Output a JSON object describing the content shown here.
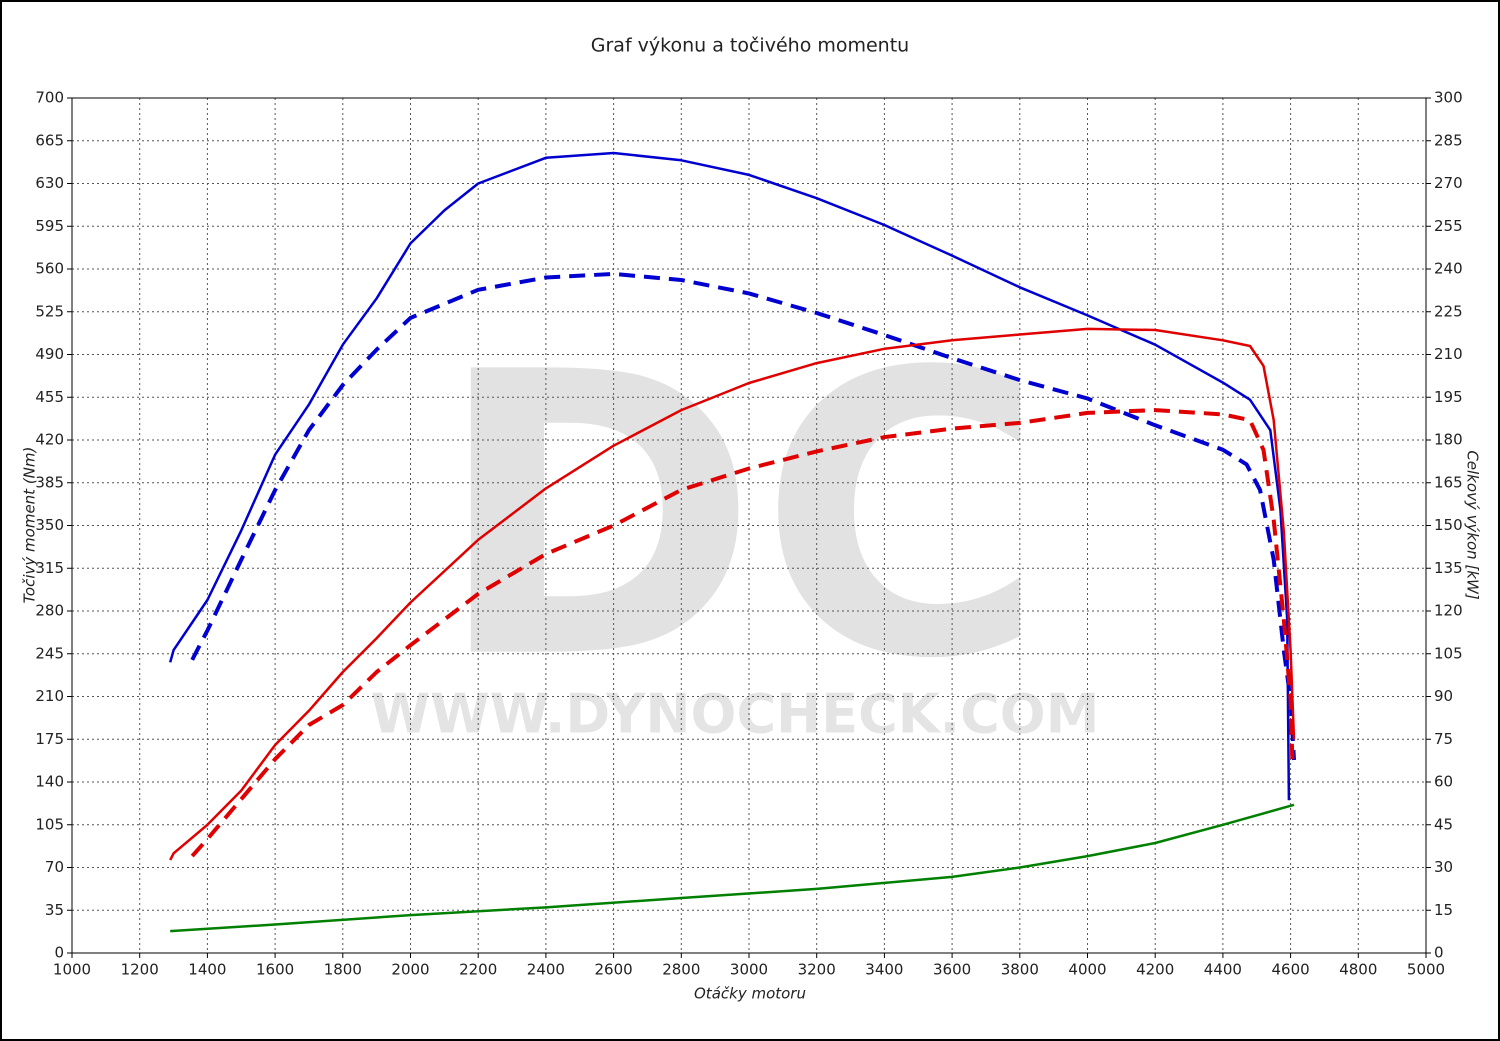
{
  "chart_data": {
    "type": "line",
    "title": "Graf výkonu a točivého momentu",
    "x_label": "Otáčky motoru",
    "y_label": "Točivý moment (Nm)",
    "y2_label": "Celkový výkon [kW]",
    "watermark": "DC",
    "watermark_url": "WWW.DYNOCHECK.COM",
    "xlim": [
      1000,
      5000
    ],
    "xticks": [
      1000,
      1200,
      1400,
      1600,
      1800,
      2000,
      2200,
      2400,
      2600,
      2800,
      3000,
      3200,
      3400,
      3600,
      3800,
      4000,
      4200,
      4400,
      4600,
      4800,
      5000
    ],
    "ylim": [
      0,
      700
    ],
    "yticks": [
      0,
      35,
      70,
      105,
      140,
      175,
      210,
      245,
      280,
      315,
      350,
      385,
      420,
      455,
      490,
      525,
      560,
      595,
      630,
      665,
      700
    ],
    "y2lim": [
      0,
      300
    ],
    "y2ticks": [
      0,
      15,
      30,
      45,
      60,
      75,
      90,
      105,
      120,
      135,
      150,
      165,
      180,
      195,
      210,
      225,
      240,
      255,
      270,
      285,
      300
    ],
    "grid": true,
    "series": [
      {
        "color": "#0000d0",
        "dashed": false,
        "axis": "y",
        "x": [
          1290,
          1300,
          1400,
          1500,
          1600,
          1700,
          1800,
          1900,
          2000,
          2100,
          2200,
          2400,
          2600,
          2800,
          3000,
          3200,
          3400,
          3600,
          3800,
          4000,
          4200,
          4400,
          4480,
          4540,
          4570,
          4590,
          4595
        ],
        "values": [
          238,
          248,
          289,
          346,
          408,
          449,
          498,
          536,
          581,
          608,
          630,
          651,
          655,
          649,
          637,
          618,
          596,
          571,
          545,
          522,
          498,
          467,
          453,
          428,
          363,
          273,
          125
        ]
      },
      {
        "color": "#0000d0",
        "dashed": true,
        "axis": "y",
        "x": [
          1355,
          1370,
          1400,
          1500,
          1600,
          1700,
          1800,
          1900,
          2000,
          2200,
          2400,
          2600,
          2800,
          3000,
          3200,
          3400,
          3600,
          3800,
          4000,
          4200,
          4400,
          4470,
          4510,
          4550,
          4580,
          4600,
          4610
        ],
        "values": [
          240,
          248,
          264,
          322,
          379,
          428,
          465,
          494,
          520,
          543,
          553,
          556,
          551,
          540,
          524,
          506,
          487,
          469,
          454,
          432,
          412,
          400,
          379,
          322,
          248,
          207,
          158
        ]
      },
      {
        "color": "#e00000",
        "dashed": false,
        "axis": "y2",
        "x": [
          1290,
          1300,
          1400,
          1500,
          1600,
          1700,
          1800,
          1900,
          2000,
          2200,
          2400,
          2600,
          2800,
          3000,
          3200,
          3400,
          3600,
          3800,
          4000,
          4200,
          4400,
          4480,
          4520,
          4550,
          4580,
          4600,
          4610
        ],
        "values": [
          32.6,
          35,
          45,
          57,
          73,
          85,
          98.6,
          110.5,
          123,
          145,
          163,
          178,
          190.5,
          200,
          207,
          212,
          215,
          217,
          219,
          218.6,
          215,
          213,
          206,
          187,
          148,
          106,
          75
        ]
      },
      {
        "color": "#e00000",
        "dashed": true,
        "axis": "y2",
        "x": [
          1355,
          1400,
          1500,
          1600,
          1700,
          1800,
          1900,
          2000,
          2200,
          2400,
          2600,
          2800,
          3000,
          3200,
          3400,
          3600,
          3800,
          4000,
          4200,
          4400,
          4480,
          4520,
          4550,
          4580,
          4600,
          4605
        ],
        "values": [
          34,
          40,
          54,
          68,
          80,
          87,
          98.6,
          108,
          126,
          140,
          150,
          162.5,
          170,
          176,
          181,
          184,
          186,
          189.5,
          190.5,
          189,
          187,
          176.5,
          152,
          117,
          89,
          68
        ]
      },
      {
        "color": "#008000",
        "dashed": false,
        "axis": "y2",
        "x": [
          1290,
          1600,
          2000,
          2400,
          2800,
          3200,
          3600,
          3800,
          4000,
          4200,
          4400,
          4610
        ],
        "values": [
          7.7,
          10,
          13.3,
          16,
          19.3,
          22.5,
          26.7,
          30,
          34,
          38.6,
          45,
          52
        ]
      }
    ]
  }
}
